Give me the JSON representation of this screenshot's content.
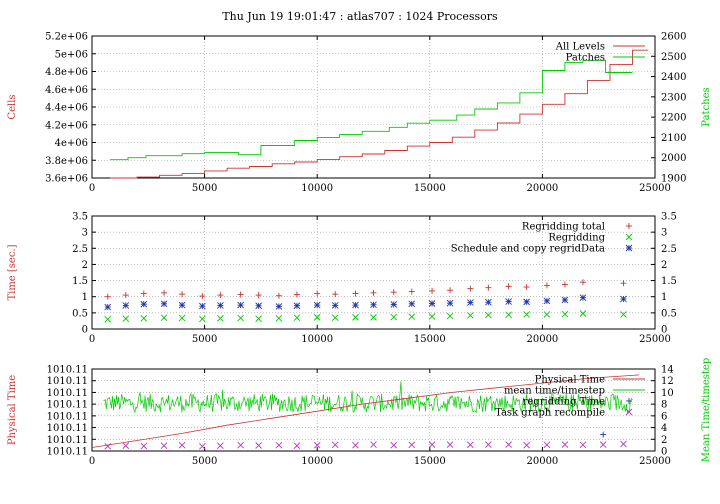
{
  "page": {
    "title": "Thu Jun 19 19:01:47 : atlas707 : 1024 Processors"
  },
  "colors": {
    "red": "#cc3333",
    "green": "#00cc00",
    "blue": "#2233aa",
    "magenta": "#bb33bb",
    "grid": "#999999"
  },
  "chart_data": [
    {
      "type": "line",
      "title": "Thu Jun 19 19:01:47 : atlas707 : 1024 Processors",
      "ylabel": "Cells",
      "y2label": "Patches",
      "xlim": [
        0,
        25000
      ],
      "ylim": [
        3600000,
        5200000
      ],
      "y2lim": [
        1900,
        2600
      ],
      "x_ticks": [
        "0",
        "5000",
        "10000",
        "15000",
        "20000",
        "25000"
      ],
      "y_ticks": [
        "3.6e+06",
        "3.8e+06",
        "4e+06",
        "4.2e+06",
        "4.4e+06",
        "4.6e+06",
        "4.8e+06",
        "5e+06",
        "5.2e+06"
      ],
      "y2_ticks": [
        "1900",
        "2000",
        "2100",
        "2200",
        "2300",
        "2400",
        "2500",
        "2600"
      ],
      "grid": true,
      "legend": "top-right",
      "series": [
        {
          "name": "All Levels",
          "axis": "left",
          "color": "#cc3333",
          "style": "step",
          "x": [
            800,
            2000,
            3000,
            4000,
            5000,
            6000,
            7000,
            8000,
            9000,
            10000,
            11000,
            12000,
            13000,
            14000,
            15000,
            16000,
            17000,
            18000,
            19000,
            20000,
            21000,
            22000,
            23000,
            24000
          ],
          "y": [
            3600000,
            3610000,
            3630000,
            3650000,
            3680000,
            3710000,
            3730000,
            3760000,
            3780000,
            3810000,
            3840000,
            3870000,
            3910000,
            3960000,
            4000000,
            4060000,
            4140000,
            4220000,
            4320000,
            4430000,
            4550000,
            4700000,
            4880000,
            5040000
          ]
        },
        {
          "name": "Patches",
          "axis": "right",
          "color": "#00cc00",
          "style": "step",
          "x": [
            800,
            1600,
            2400,
            4000,
            5000,
            6500,
            7500,
            9000,
            10000,
            11000,
            12000,
            13200,
            14000,
            15000,
            16200,
            17000,
            18000,
            19000,
            20000,
            21000,
            21800,
            22800,
            23600
          ],
          "y": [
            1990,
            2000,
            2010,
            2020,
            2025,
            2015,
            2060,
            2085,
            2100,
            2115,
            2130,
            2150,
            2170,
            2185,
            2210,
            2240,
            2270,
            2320,
            2430,
            2470,
            2480,
            2420,
            2420
          ]
        }
      ]
    },
    {
      "type": "scatter",
      "ylabel": "Time [sec.]",
      "xlim": [
        0,
        25000
      ],
      "ylim": [
        0,
        3.5
      ],
      "y2lim": [
        0,
        3.5
      ],
      "x_ticks": [
        "0",
        "5000",
        "10000",
        "15000",
        "20000",
        "25000"
      ],
      "y_ticks": [
        "0",
        "0.5",
        "1",
        "1.5",
        "2",
        "2.5",
        "3",
        "3.5"
      ],
      "y2_ticks": [
        "0",
        "0.5",
        "1",
        "1.5",
        "2",
        "2.5",
        "3",
        "3.5"
      ],
      "grid": true,
      "legend": "top-right",
      "x": [
        700,
        1500,
        2300,
        3200,
        4000,
        4900,
        5700,
        6600,
        7400,
        8300,
        9100,
        10000,
        10800,
        11700,
        12500,
        13400,
        14200,
        15100,
        15900,
        16800,
        17600,
        18500,
        19300,
        20200,
        21000,
        21800,
        23600
      ],
      "series": [
        {
          "name": "Regridding total",
          "marker": "+",
          "color": "#cc3333",
          "y": [
            1.0,
            1.05,
            1.1,
            1.12,
            1.08,
            1.02,
            1.05,
            1.07,
            1.05,
            1.03,
            1.07,
            1.1,
            1.08,
            1.1,
            1.12,
            1.14,
            1.16,
            1.18,
            1.2,
            1.25,
            1.28,
            1.32,
            1.3,
            1.35,
            1.38,
            1.45,
            1.42
          ]
        },
        {
          "name": "Regridding",
          "marker": "x",
          "color": "#00cc00",
          "y": [
            0.3,
            0.32,
            0.33,
            0.35,
            0.34,
            0.31,
            0.33,
            0.34,
            0.32,
            0.33,
            0.35,
            0.36,
            0.35,
            0.36,
            0.36,
            0.37,
            0.38,
            0.39,
            0.4,
            0.42,
            0.43,
            0.44,
            0.45,
            0.45,
            0.46,
            0.48,
            0.45
          ]
        },
        {
          "name": "Schedule and copy regridData",
          "marker": "*",
          "color": "#2233aa",
          "y": [
            0.68,
            0.73,
            0.77,
            0.78,
            0.74,
            0.71,
            0.73,
            0.74,
            0.72,
            0.7,
            0.72,
            0.74,
            0.73,
            0.74,
            0.75,
            0.76,
            0.78,
            0.79,
            0.8,
            0.82,
            0.83,
            0.85,
            0.84,
            0.87,
            0.9,
            0.97,
            0.93
          ]
        }
      ]
    },
    {
      "type": "line",
      "ylabel": "Physical Time",
      "y2label": "Mean Time/timestep",
      "xlim": [
        0,
        25000
      ],
      "ylim": [
        0,
        7
      ],
      "y2lim": [
        0,
        14
      ],
      "x_ticks": [
        "0",
        "5000",
        "10000",
        "15000",
        "20000",
        "25000"
      ],
      "y_ticks": [
        "1010.11",
        "1010.11",
        "1010.11",
        "1010.11",
        "1010.11",
        "1010.11",
        "1010.11",
        "1010.11"
      ],
      "y2_ticks": [
        "0",
        "2",
        "4",
        "6",
        "8",
        "10",
        "12",
        "14"
      ],
      "grid": true,
      "legend": "top-right",
      "series": [
        {
          "name": "Physical Time",
          "axis": "left",
          "color": "#cc3333",
          "style": "line",
          "x": [
            0,
            2000,
            4000,
            6000,
            8000,
            10000,
            12000,
            14000,
            16000,
            18000,
            20000,
            22000,
            24300
          ],
          "y": [
            0.3,
            0.9,
            1.5,
            2.2,
            2.8,
            3.4,
            4.0,
            4.5,
            5.0,
            5.4,
            5.8,
            6.2,
            6.5
          ]
        },
        {
          "name": "mean time/timestep",
          "axis": "right",
          "color": "#00cc00",
          "style": "noisy",
          "x_range": [
            500,
            24000
          ],
          "mean": 8.2,
          "spread": 2.0,
          "points": 520
        },
        {
          "name": "regridding Time",
          "axis": "right",
          "marker": "+",
          "color": "#2233aa",
          "x": [
            22700
          ],
          "y": [
            2.8
          ]
        },
        {
          "name": "Task graph recompile",
          "axis": "right",
          "marker": "x",
          "color": "#bb33bb",
          "x": [
            700,
            1500,
            2300,
            3200,
            4000,
            4900,
            5700,
            6600,
            7400,
            8300,
            9100,
            10000,
            10800,
            11700,
            12500,
            13400,
            14200,
            15100,
            15900,
            16800,
            17600,
            18500,
            19300,
            20200,
            21000,
            21800,
            22700,
            23600
          ],
          "y": [
            0.8,
            0.9,
            0.85,
            0.9,
            1.0,
            0.8,
            0.9,
            1.0,
            0.95,
            1.0,
            0.9,
            1.0,
            1.05,
            1.0,
            1.1,
            1.0,
            1.05,
            1.1,
            1.1,
            1.05,
            1.1,
            1.1,
            1.0,
            1.05,
            1.1,
            1.05,
            1.1,
            1.2
          ]
        }
      ]
    }
  ]
}
